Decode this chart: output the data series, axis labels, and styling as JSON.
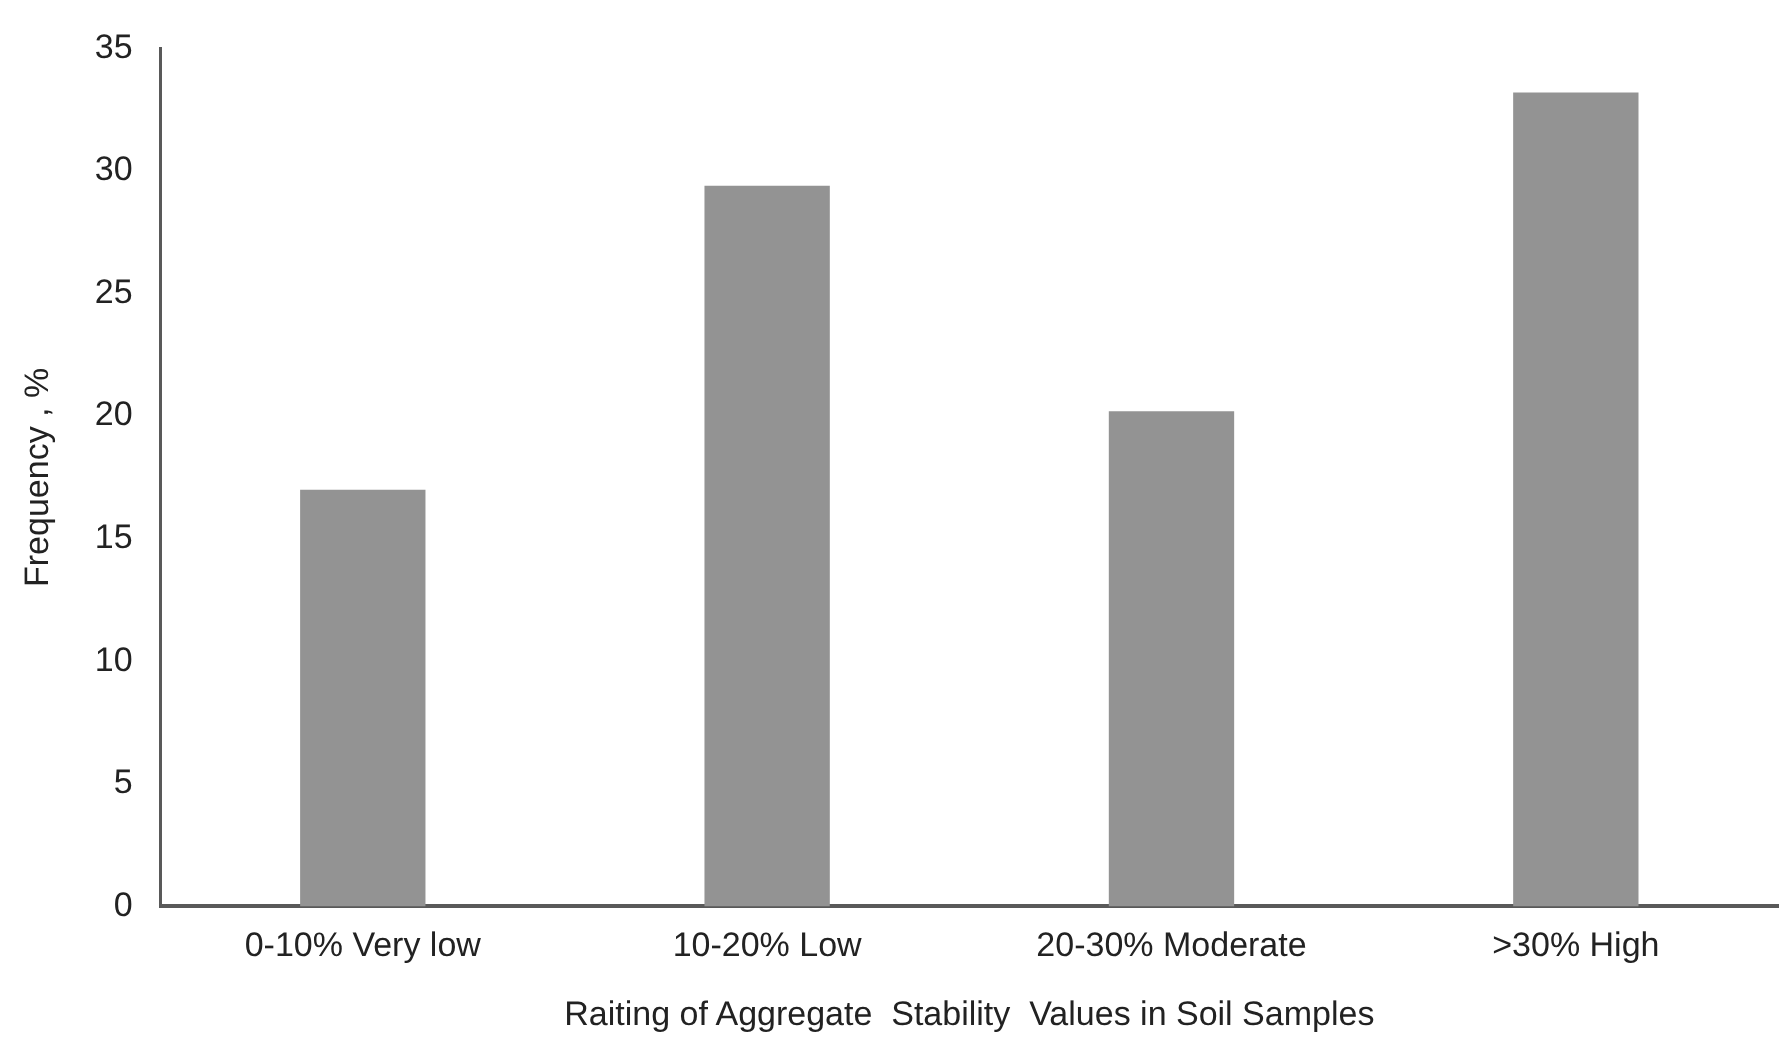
{
  "chart_data": {
    "type": "bar",
    "xlabel": "Raiting of Aggregate  Stability  Values in Soil Samples",
    "ylabel": "Frequency , %",
    "categories": [
      "0-10% Very low",
      "10-20% Low",
      "20-30% Moderate",
      ">30% High"
    ],
    "values": [
      17,
      29.4,
      20.2,
      33.2
    ],
    "color": "#939393",
    "ylim": [
      0,
      35
    ],
    "yticks": [
      0,
      5,
      10,
      15,
      20,
      25,
      30,
      35
    ],
    "grid": false,
    "legend": false
  }
}
